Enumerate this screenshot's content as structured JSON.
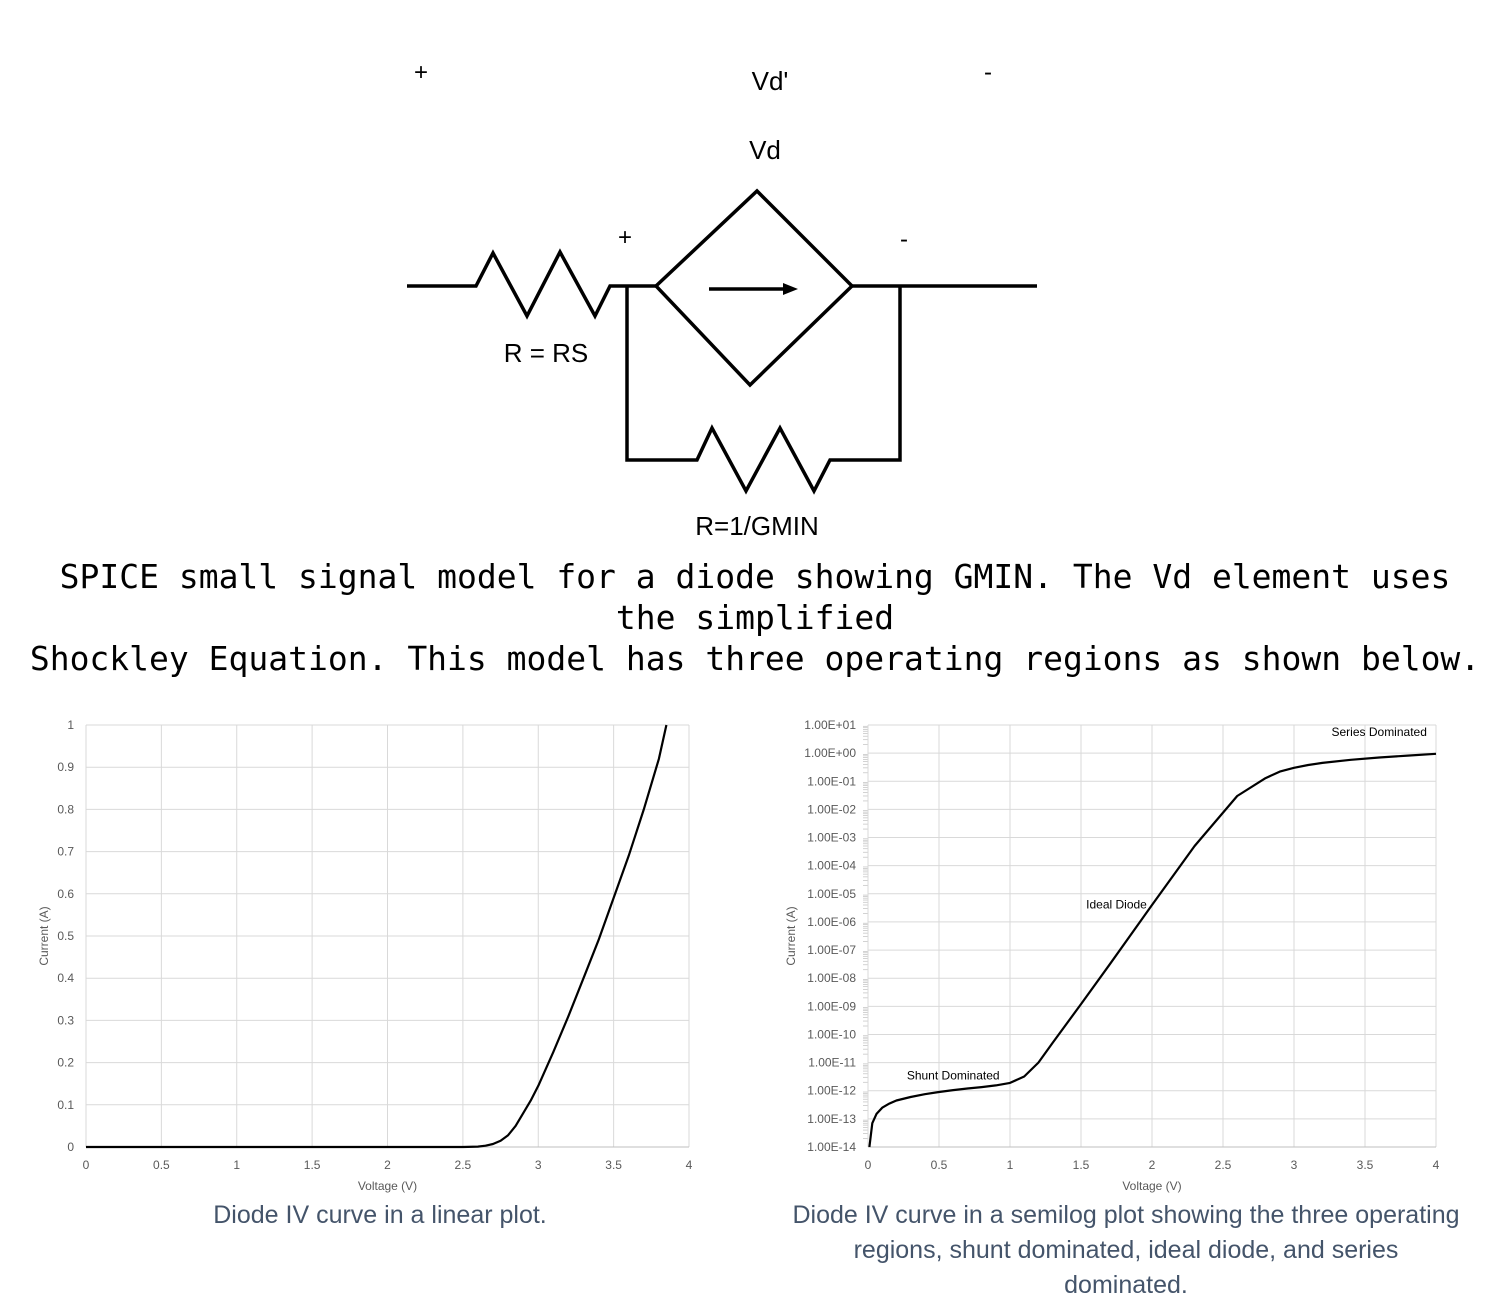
{
  "circuit": {
    "top_plus": "+",
    "top_vd_prime": "Vd'",
    "top_minus": "-",
    "vd_label": "Vd",
    "diode_plus": "+",
    "diode_minus": "-",
    "rs_label": "R = RS",
    "gmin_label": "R=1/GMIN"
  },
  "caption_main": {
    "line1": "SPICE small signal model for a diode showing GMIN. The Vd element uses the simplified",
    "line2": "Shockley Equation. This model has three operating regions as shown below."
  },
  "chart_data": [
    {
      "type": "line",
      "scale": "linear",
      "xlabel": "Voltage (V)",
      "ylabel": "Current (A)",
      "xlim": [
        0,
        4
      ],
      "ylim": [
        0,
        1
      ],
      "xticks": [
        "0",
        "0.5",
        "1",
        "1.5",
        "2",
        "2.5",
        "3",
        "3.5",
        "4"
      ],
      "yticks": [
        "0",
        "0.1",
        "0.2",
        "0.3",
        "0.4",
        "0.5",
        "0.6",
        "0.7",
        "0.8",
        "0.9",
        "1"
      ],
      "grid": true,
      "series": [
        {
          "x": [
            0,
            2.5,
            2.6,
            2.65,
            2.7,
            2.75,
            2.8,
            2.85,
            2.9,
            2.95,
            3.0,
            3.1,
            3.2,
            3.3,
            3.4,
            3.5,
            3.6,
            3.7,
            3.8,
            3.85
          ],
          "y": [
            0,
            0,
            0.001,
            0.003,
            0.007,
            0.015,
            0.028,
            0.05,
            0.08,
            0.11,
            0.145,
            0.225,
            0.31,
            0.4,
            0.49,
            0.59,
            0.69,
            0.8,
            0.92,
            1.0
          ]
        }
      ]
    },
    {
      "type": "line",
      "scale": "semilog-y",
      "xlabel": "Voltage (V)",
      "ylabel": "Current (A)",
      "xlim": [
        0,
        4
      ],
      "ylim": [
        1e-14,
        10
      ],
      "xticks": [
        "0",
        "0.5",
        "1",
        "1.5",
        "2",
        "2.5",
        "3",
        "3.5",
        "4"
      ],
      "yticks": [
        "1.00E-14",
        "1.00E-13",
        "1.00E-12",
        "1.00E-11",
        "1.00E-10",
        "1.00E-09",
        "1.00E-08",
        "1.00E-07",
        "1.00E-06",
        "1.00E-05",
        "1.00E-04",
        "1.00E-03",
        "1.00E-02",
        "1.00E-01",
        "1.00E+00",
        "1.00E+01"
      ],
      "grid": true,
      "annotations": [
        {
          "text": "Shunt Dominated",
          "x": 0.6,
          "y": 2.5e-12
        },
        {
          "text": "Ideal Diode",
          "x": 1.75,
          "y": 3e-06
        },
        {
          "text": "Series Dominated",
          "x": 3.6,
          "y": 4
        }
      ],
      "series": [
        {
          "x": [
            0.01,
            0.03,
            0.06,
            0.1,
            0.15,
            0.2,
            0.3,
            0.4,
            0.5,
            0.6,
            0.7,
            0.8,
            0.9,
            1.0,
            1.1,
            1.2,
            1.3,
            1.5,
            1.7,
            2.0,
            2.3,
            2.6,
            2.8,
            2.9,
            3.0,
            3.1,
            3.2,
            3.4,
            3.6,
            3.8,
            4.0
          ],
          "y": [
            1e-14,
            7e-14,
            1.5e-13,
            2.5e-13,
            3.5e-13,
            4.5e-13,
            6e-13,
            7.5e-13,
            9e-13,
            1.05e-12,
            1.2e-12,
            1.35e-12,
            1.55e-12,
            1.9e-12,
            3.2e-12,
            1e-11,
            5e-11,
            1.2e-09,
            3e-08,
            4e-06,
            0.0005,
            0.03,
            0.13,
            0.22,
            0.3,
            0.38,
            0.45,
            0.58,
            0.7,
            0.82,
            0.95
          ]
        }
      ]
    }
  ],
  "caption_linear": "Diode IV curve in a linear plot.",
  "caption_semilog": {
    "line1": "Diode IV curve in a semilog plot showing the three operating",
    "line2": "regions, shunt dominated, ideal diode, and series",
    "line3": "dominated."
  }
}
